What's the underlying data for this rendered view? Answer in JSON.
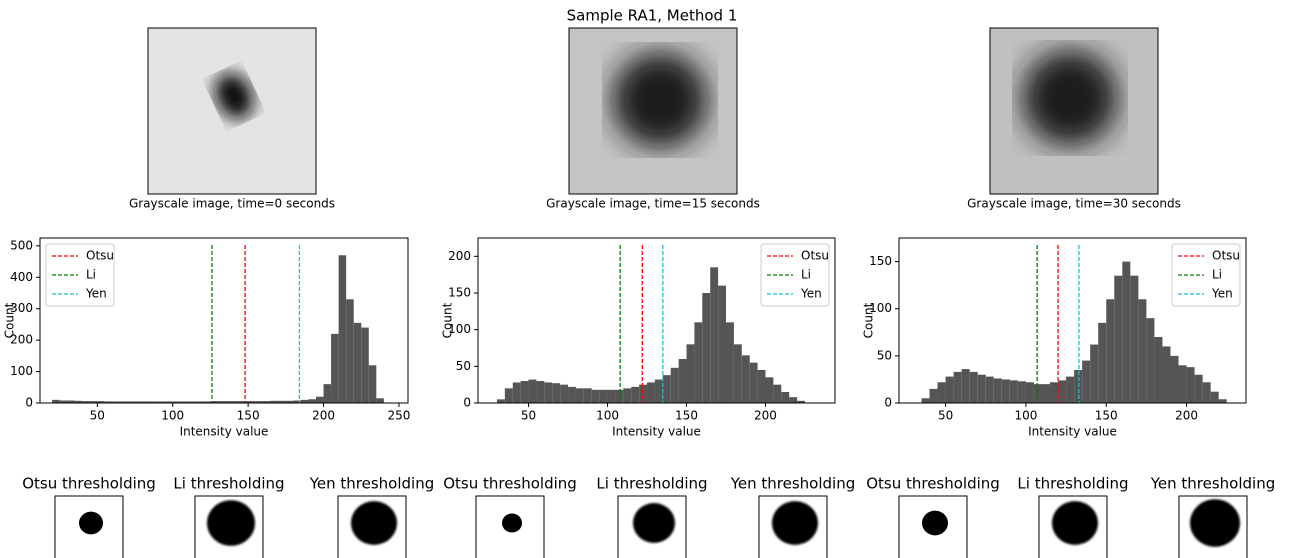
{
  "title": "Sample RA1, Method 1",
  "image_captions": [
    "Grayscale image, time=0 seconds",
    "Grayscale image, time=15 seconds",
    "Grayscale image, time=30 seconds"
  ],
  "threshold_titles": [
    "Otsu thresholding",
    "Li thresholding",
    "Yen thresholding",
    "Otsu thresholding",
    "Li thresholding",
    "Yen thresholding",
    "Otsu thresholding",
    "Li thresholding",
    "Yen thresholding"
  ],
  "chart_data": [
    {
      "type": "histogram",
      "xlabel": "Intensity value",
      "ylabel": "Count",
      "color": "#555555",
      "bins": [
        20,
        25,
        30,
        35,
        40,
        45,
        50,
        55,
        60,
        65,
        70,
        75,
        80,
        85,
        90,
        95,
        100,
        105,
        110,
        115,
        120,
        125,
        130,
        135,
        140,
        145,
        150,
        155,
        160,
        165,
        170,
        175,
        180,
        185,
        190,
        195,
        200,
        205,
        210,
        215,
        220,
        225,
        230,
        235,
        240
      ],
      "values": [
        10,
        8,
        8,
        7,
        6,
        6,
        6,
        5,
        5,
        5,
        5,
        5,
        5,
        5,
        5,
        5,
        5,
        5,
        5,
        5,
        5,
        6,
        6,
        6,
        6,
        6,
        6,
        6,
        6,
        7,
        7,
        7,
        8,
        10,
        12,
        20,
        60,
        220,
        470,
        330,
        255,
        240,
        120,
        15
      ],
      "xlim": [
        12,
        256
      ],
      "ylim": [
        0,
        525
      ],
      "xticks": [
        50,
        100,
        150,
        200,
        250
      ],
      "yticks": [
        0,
        100,
        200,
        300,
        400,
        500
      ],
      "thresholds": [
        {
          "name": "Otsu",
          "color": "#ff0000",
          "value": 148
        },
        {
          "name": "Li",
          "color": "#008000",
          "value": 126
        },
        {
          "name": "Yen",
          "color": "#17becf",
          "value": 184
        }
      ],
      "legend": "upper left"
    },
    {
      "type": "histogram",
      "xlabel": "Intensity value",
      "ylabel": "Count",
      "color": "#555555",
      "bins": [
        30,
        35,
        40,
        45,
        50,
        55,
        60,
        65,
        70,
        75,
        80,
        85,
        90,
        95,
        100,
        105,
        110,
        115,
        120,
        125,
        130,
        135,
        140,
        145,
        150,
        155,
        160,
        165,
        170,
        175,
        180,
        185,
        190,
        195,
        200,
        205,
        210,
        215,
        220,
        225
      ],
      "values": [
        5,
        20,
        28,
        30,
        32,
        30,
        28,
        27,
        25,
        22,
        20,
        20,
        18,
        18,
        18,
        18,
        20,
        22,
        25,
        28,
        32,
        38,
        48,
        60,
        80,
        110,
        150,
        185,
        160,
        110,
        80,
        65,
        55,
        45,
        35,
        25,
        15,
        8,
        3
      ],
      "xlim": [
        18,
        244
      ],
      "ylim": [
        0,
        225
      ],
      "xticks": [
        50,
        100,
        150,
        200
      ],
      "yticks": [
        0,
        50,
        100,
        150,
        200
      ],
      "thresholds": [
        {
          "name": "Otsu",
          "color": "#ff0000",
          "value": 122
        },
        {
          "name": "Li",
          "color": "#008000",
          "value": 108
        },
        {
          "name": "Yen",
          "color": "#17becf",
          "value": 135
        }
      ],
      "legend": "upper right"
    },
    {
      "type": "histogram",
      "xlabel": "Intensity value",
      "ylabel": "Count",
      "color": "#555555",
      "bins": [
        35,
        40,
        45,
        50,
        55,
        60,
        65,
        70,
        75,
        80,
        85,
        90,
        95,
        100,
        105,
        110,
        115,
        120,
        125,
        130,
        135,
        140,
        145,
        150,
        155,
        160,
        165,
        170,
        175,
        180,
        185,
        190,
        195,
        200,
        205,
        210,
        215,
        220,
        225
      ],
      "values": [
        5,
        15,
        22,
        28,
        33,
        36,
        33,
        30,
        28,
        26,
        25,
        24,
        23,
        22,
        20,
        20,
        22,
        24,
        28,
        35,
        45,
        62,
        85,
        110,
        135,
        150,
        135,
        110,
        90,
        70,
        60,
        50,
        40,
        38,
        30,
        22,
        12,
        4
      ],
      "xlim": [
        21,
        237
      ],
      "ylim": [
        0,
        175
      ],
      "xticks": [
        50,
        100,
        150,
        200
      ],
      "yticks": [
        0,
        50,
        100,
        150
      ],
      "thresholds": [
        {
          "name": "Otsu",
          "color": "#ff0000",
          "value": 120
        },
        {
          "name": "Li",
          "color": "#008000",
          "value": 107
        },
        {
          "name": "Yen",
          "color": "#17becf",
          "value": 133
        }
      ],
      "legend": "upper right"
    }
  ]
}
